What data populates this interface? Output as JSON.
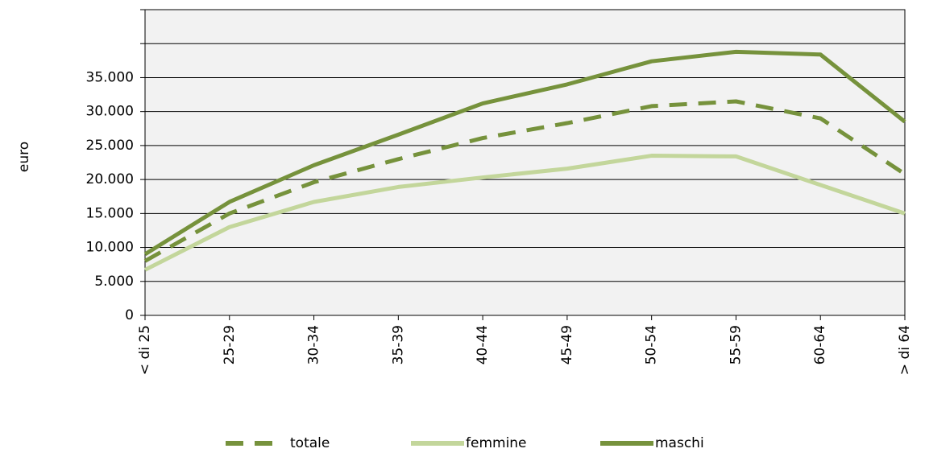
{
  "chart_data": {
    "type": "line",
    "y_label": "euro",
    "categories": [
      "< di 25",
      "25-29",
      "30-34",
      "35-39",
      "40-44",
      "45-49",
      "50-54",
      "55-59",
      "60-64",
      "> di 64"
    ],
    "series": [
      {
        "name": "totale",
        "color": "#76923c",
        "dashed": true,
        "values": [
          8000,
          15000,
          19600,
          23000,
          26100,
          28300,
          30800,
          31500,
          29000,
          20800
        ]
      },
      {
        "name": "femmine",
        "color": "#c3d69b",
        "dashed": false,
        "values": [
          6700,
          13000,
          16700,
          18900,
          20300,
          21600,
          23500,
          23400,
          19200,
          15000
        ]
      },
      {
        "name": "maschi",
        "color": "#76923c",
        "dashed": false,
        "values": [
          9000,
          16700,
          22100,
          26600,
          31200,
          34000,
          37400,
          38800,
          38400,
          28500
        ]
      }
    ],
    "ylim": [
      0,
      45000
    ],
    "yticks": [
      0,
      {
        "value": 5000,
        "label": "5.000"
      },
      {
        "value": 10000,
        "label": "10.000"
      },
      {
        "value": 15000,
        "label": "15.000"
      },
      {
        "value": 20000,
        "label": "20.000"
      },
      {
        "value": 25000,
        "label": "25.000"
      },
      {
        "value": 30000,
        "label": "30.000"
      },
      {
        "value": 35000,
        "label": "35.000"
      },
      {
        "value": 40000
      },
      {
        "value": 45000
      }
    ],
    "grid": true,
    "legend": "bottom"
  }
}
